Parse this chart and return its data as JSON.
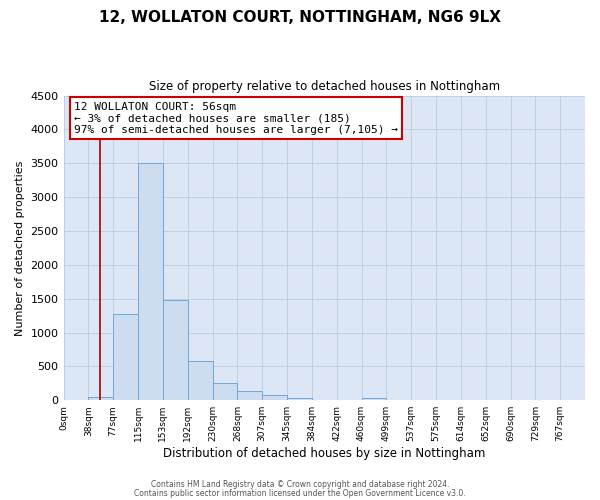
{
  "title": "12, WOLLATON COURT, NOTTINGHAM, NG6 9LX",
  "subtitle": "Size of property relative to detached houses in Nottingham",
  "xlabel": "Distribution of detached houses by size in Nottingham",
  "ylabel": "Number of detached properties",
  "footer_line1": "Contains HM Land Registry data © Crown copyright and database right 2024.",
  "footer_line2": "Contains public sector information licensed under the Open Government Licence v3.0.",
  "bin_labels": [
    "0sqm",
    "38sqm",
    "77sqm",
    "115sqm",
    "153sqm",
    "192sqm",
    "230sqm",
    "268sqm",
    "307sqm",
    "345sqm",
    "384sqm",
    "422sqm",
    "460sqm",
    "499sqm",
    "537sqm",
    "575sqm",
    "614sqm",
    "652sqm",
    "690sqm",
    "729sqm",
    "767sqm"
  ],
  "bar_values": [
    0,
    50,
    1280,
    3500,
    1480,
    580,
    250,
    140,
    75,
    30,
    10,
    5,
    40,
    0,
    0,
    0,
    0,
    0,
    0,
    0,
    0
  ],
  "bar_color": "#cddcef",
  "bar_edge_color": "#6fa8d9",
  "ylim": [
    0,
    4500
  ],
  "yticks": [
    0,
    500,
    1000,
    1500,
    2000,
    2500,
    3000,
    3500,
    4000,
    4500
  ],
  "annotation_title": "12 WOLLATON COURT: 56sqm",
  "annotation_line1": "← 3% of detached houses are smaller (185)",
  "annotation_line2": "97% of semi-detached houses are larger (7,105) →",
  "annotation_box_facecolor": "#ffffff",
  "annotation_box_edgecolor": "#cc0000",
  "red_line_color": "#aa0000",
  "plot_bg_color": "#dce6f5",
  "fig_bg_color": "#ffffff",
  "grid_color": "#b8cce4"
}
